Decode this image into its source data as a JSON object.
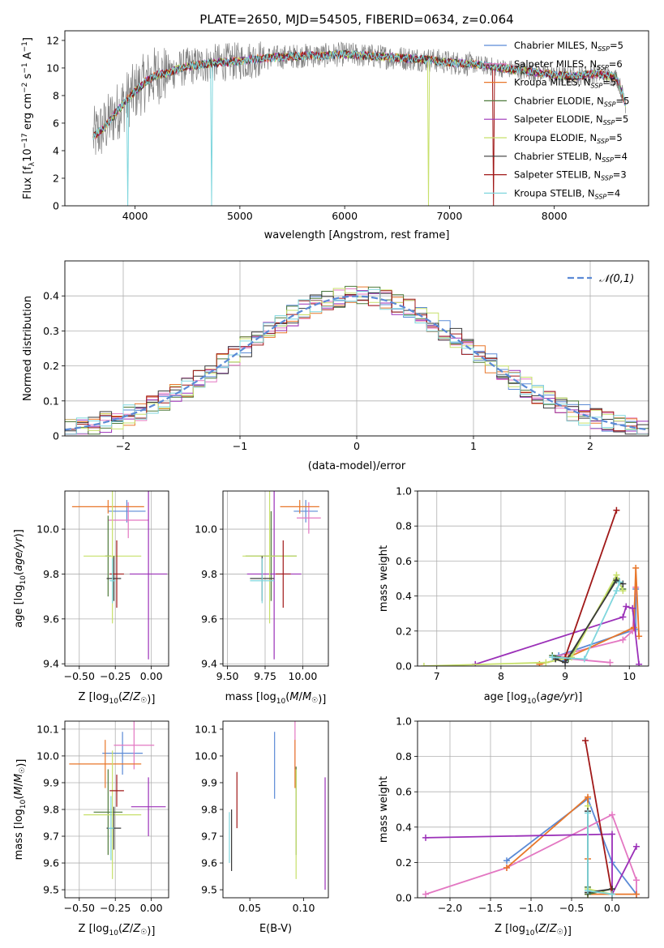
{
  "figure_title": "PLATE=2650, MJD=54505, FIBERID=0634, z=0.064",
  "colors": {
    "chabrier_miles": "#5b8ad6",
    "salpeter_miles": "#e377c2",
    "kroupa_miles": "#e8772a",
    "chabrier_elodie": "#4e7a3a",
    "salpeter_elodie": "#9b30b8",
    "kroupa_elodie": "#c7e06a",
    "chabrier_stelib": "#3a3a3a",
    "salpeter_stelib": "#a01818",
    "kroupa_stelib": "#7fd6dd",
    "data": "#808080",
    "normal": "#5b8ad6"
  },
  "chart_data": [
    {
      "id": "spectrum",
      "type": "line",
      "xlabel": "wavelength [Angstrom, rest frame]",
      "ylabel": "Flux [f_λ 10^-17 erg cm^-2 s^-1 A^-1]",
      "xlim": [
        3330,
        8900
      ],
      "ylim": [
        0,
        12.7
      ],
      "xticks": [
        4000,
        5000,
        6000,
        7000,
        8000
      ],
      "yticks": [
        0,
        2,
        4,
        6,
        8,
        10,
        12
      ],
      "legend_position": "upper right",
      "legend": [
        {
          "label": "Chabrier MILES, N",
          "sub": "SSP",
          "suffix": "=5",
          "key": "chabrier_miles"
        },
        {
          "label": "Salpeter MILES, N",
          "sub": "SSP",
          "suffix": "=6",
          "key": "salpeter_miles"
        },
        {
          "label": "Kroupa MILES, N",
          "sub": "SSP",
          "suffix": "=5",
          "key": "kroupa_miles"
        },
        {
          "label": "Chabrier ELODIE, N",
          "sub": "SSP",
          "suffix": "=5",
          "key": "chabrier_elodie"
        },
        {
          "label": "Salpeter ELODIE, N",
          "sub": "SSP",
          "suffix": "=5",
          "key": "salpeter_elodie"
        },
        {
          "label": "Kroupa ELODIE, N",
          "sub": "SSP",
          "suffix": "=5",
          "key": "kroupa_elodie"
        },
        {
          "label": "Chabrier STELIB, N",
          "sub": "SSP",
          "suffix": "=4",
          "key": "chabrier_stelib"
        },
        {
          "label": "Salpeter STELIB, N",
          "sub": "SSP",
          "suffix": "=3",
          "key": "salpeter_stelib"
        },
        {
          "label": "Kroupa STELIB, N",
          "sub": "SSP",
          "suffix": "=4",
          "key": "kroupa_stelib"
        }
      ],
      "continuum": [
        [
          3600,
          5.0
        ],
        [
          3700,
          5.6
        ],
        [
          3800,
          6.6
        ],
        [
          3900,
          7.5
        ],
        [
          4000,
          8.3
        ],
        [
          4100,
          9.0
        ],
        [
          4200,
          9.5
        ],
        [
          4300,
          9.6
        ],
        [
          4400,
          9.9
        ],
        [
          4500,
          10.1
        ],
        [
          4600,
          10.2
        ],
        [
          4700,
          10.3
        ],
        [
          4800,
          10.4
        ],
        [
          5000,
          10.5
        ],
        [
          5200,
          10.7
        ],
        [
          5400,
          10.8
        ],
        [
          5600,
          10.9
        ],
        [
          5800,
          10.9
        ],
        [
          6000,
          11.0
        ],
        [
          6200,
          10.9
        ],
        [
          6400,
          10.8
        ],
        [
          6600,
          10.7
        ],
        [
          6800,
          10.6
        ],
        [
          7000,
          10.4
        ],
        [
          7200,
          10.3
        ],
        [
          7400,
          10.1
        ],
        [
          7600,
          9.9
        ],
        [
          7800,
          9.7
        ],
        [
          8000,
          9.5
        ],
        [
          8200,
          9.4
        ],
        [
          8400,
          9.6
        ],
        [
          8600,
          9.3
        ],
        [
          8680,
          7.4
        ]
      ],
      "dips": [
        {
          "series": "kroupa_stelib",
          "x": 3930,
          "y": 0
        },
        {
          "series": "kroupa_stelib",
          "x": 4730,
          "y": 0
        },
        {
          "series": "kroupa_elodie",
          "x": 6800,
          "y": 0
        },
        {
          "series": "salpeter_stelib",
          "x": 7420,
          "y": 0
        }
      ]
    },
    {
      "id": "residuals",
      "type": "area",
      "xlabel": "(data-model)/error",
      "ylabel": "Normed distribution",
      "xlim": [
        -2.5,
        2.5
      ],
      "ylim": [
        0,
        0.5
      ],
      "xticks": [
        -2,
        -1,
        0,
        1,
        2
      ],
      "yticks": [
        0.0,
        0.1,
        0.2,
        0.3,
        0.4
      ],
      "grid": true,
      "legend_position": "upper right",
      "legend_label": "𝒩(0,1)",
      "bin_width": 0.1
    },
    {
      "id": "age_vs_Z",
      "type": "scatter",
      "xlabel": "Z [log10(Z/Z☉)]",
      "ylabel": "age  [log10(age/yr)]",
      "xlim": [
        -0.6,
        0.12
      ],
      "ylim": [
        9.39,
        10.17
      ],
      "xticks": [
        -0.5,
        -0.25,
        0.0
      ],
      "yticks": [
        9.4,
        9.6,
        9.8,
        10.0
      ],
      "grid": true,
      "crosses": [
        {
          "series": "chabrier_miles",
          "x": -0.17,
          "y": 10.08,
          "xerr": 0.13,
          "yerr": 0.05
        },
        {
          "series": "salpeter_miles",
          "x": -0.16,
          "y": 10.04,
          "xerr": 0.14,
          "yerr": 0.08
        },
        {
          "series": "kroupa_miles",
          "x": -0.3,
          "y": 10.1,
          "xerr": 0.25,
          "yerr": 0.03
        },
        {
          "series": "chabrier_elodie",
          "x": -0.3,
          "y": 9.88,
          "xerr": 0.02,
          "yerr": 0.18
        },
        {
          "series": "salpeter_elodie",
          "x": -0.02,
          "y": 9.8,
          "xerr": 0.13,
          "yerr": 0.38
        },
        {
          "series": "kroupa_elodie",
          "x": -0.27,
          "y": 9.88,
          "xerr": 0.2,
          "yerr": 0.3
        },
        {
          "series": "chabrier_stelib",
          "x": -0.26,
          "y": 9.78,
          "xerr": 0.05,
          "yerr": 0.1
        },
        {
          "series": "salpeter_stelib",
          "x": -0.24,
          "y": 9.8,
          "xerr": 0.05,
          "yerr": 0.15
        },
        {
          "series": "kroupa_stelib",
          "x": -0.27,
          "y": 9.77,
          "xerr": 0.02,
          "yerr": 0.1
        }
      ]
    },
    {
      "id": "age_vs_mass",
      "type": "scatter",
      "xlabel": "mass [log10(M/M☉)]",
      "ylabel": "",
      "xlim": [
        9.47,
        10.17
      ],
      "ylim": [
        9.39,
        10.17
      ],
      "xticks": [
        9.5,
        9.75,
        10.0
      ],
      "yticks": [
        9.4,
        9.6,
        9.8,
        10.0
      ],
      "grid": true,
      "crosses": [
        {
          "series": "chabrier_miles",
          "x": 10.02,
          "y": 10.08,
          "xerr": 0.08,
          "yerr": 0.05
        },
        {
          "series": "salpeter_miles",
          "x": 10.04,
          "y": 10.05,
          "xerr": 0.08,
          "yerr": 0.07
        },
        {
          "series": "kroupa_miles",
          "x": 9.98,
          "y": 10.1,
          "xerr": 0.13,
          "yerr": 0.03
        },
        {
          "series": "chabrier_elodie",
          "x": 9.79,
          "y": 9.88,
          "xerr": 0.17,
          "yerr": 0.2
        },
        {
          "series": "salpeter_elodie",
          "x": 9.81,
          "y": 9.8,
          "xerr": 0.18,
          "yerr": 0.38
        },
        {
          "series": "kroupa_elodie",
          "x": 9.78,
          "y": 9.88,
          "xerr": 0.18,
          "yerr": 0.3
        },
        {
          "series": "chabrier_stelib",
          "x": 9.73,
          "y": 9.78,
          "xerr": 0.08,
          "yerr": 0.1
        },
        {
          "series": "salpeter_stelib",
          "x": 9.87,
          "y": 9.8,
          "xerr": 0.05,
          "yerr": 0.15
        },
        {
          "series": "kroupa_stelib",
          "x": 9.73,
          "y": 9.77,
          "xerr": 0.08,
          "yerr": 0.1
        }
      ]
    },
    {
      "id": "weight_vs_age",
      "type": "line",
      "xlabel": "age  [log10(age/yr)]",
      "ylabel": "mass weight",
      "xlim": [
        6.7,
        10.3
      ],
      "ylim": [
        0,
        1.0
      ],
      "xticks": [
        7,
        8,
        9,
        10
      ],
      "yticks": [
        0.0,
        0.2,
        0.4,
        0.6,
        0.8,
        1.0
      ],
      "grid": true,
      "series": [
        {
          "key": "chabrier_miles",
          "points": [
            [
              9.0,
              0.03
            ],
            [
              8.9,
              0.06
            ],
            [
              10.1,
              0.21
            ],
            [
              10.1,
              0.44
            ]
          ]
        },
        {
          "key": "salpeter_miles",
          "points": [
            [
              9.7,
              0.02
            ],
            [
              8.8,
              0.05
            ],
            [
              9.9,
              0.15
            ],
            [
              10.05,
              0.2
            ],
            [
              10.1,
              0.45
            ]
          ]
        },
        {
          "key": "kroupa_miles",
          "points": [
            [
              8.6,
              0.01
            ],
            [
              9.05,
              0.05
            ],
            [
              10.07,
              0.22
            ],
            [
              10.1,
              0.56
            ],
            [
              10.15,
              0.17
            ]
          ]
        },
        {
          "key": "chabrier_elodie",
          "points": [
            [
              8.8,
              0.06
            ],
            [
              9.05,
              0.04
            ],
            [
              9.8,
              0.5
            ],
            [
              9.9,
              0.44
            ]
          ]
        },
        {
          "key": "salpeter_elodie",
          "points": [
            [
              7.6,
              0.01
            ],
            [
              9.9,
              0.28
            ],
            [
              9.95,
              0.34
            ],
            [
              10.05,
              0.33
            ],
            [
              10.15,
              0.01
            ]
          ]
        },
        {
          "key": "kroupa_elodie",
          "points": [
            [
              6.8,
              0.0
            ],
            [
              8.7,
              0.02
            ],
            [
              9.1,
              0.05
            ],
            [
              9.8,
              0.52
            ],
            [
              9.9,
              0.43
            ]
          ]
        },
        {
          "key": "chabrier_stelib",
          "points": [
            [
              8.85,
              0.04
            ],
            [
              9.0,
              0.02
            ],
            [
              9.8,
              0.49
            ],
            [
              9.9,
              0.47
            ]
          ]
        },
        {
          "key": "salpeter_stelib",
          "points": [
            [
              9.0,
              0.05
            ],
            [
              9.8,
              0.89
            ]
          ]
        },
        {
          "key": "kroupa_stelib",
          "points": [
            [
              8.8,
              0.05
            ],
            [
              9.3,
              0.04
            ],
            [
              9.8,
              0.43
            ],
            [
              9.85,
              0.48
            ]
          ]
        }
      ]
    },
    {
      "id": "mass_vs_Z",
      "type": "scatter",
      "xlabel": "Z [log10(Z/Z☉)]",
      "ylabel": "mass [log10(M/M☉)]",
      "xlim": [
        -0.6,
        0.12
      ],
      "ylim": [
        9.47,
        10.13
      ],
      "xticks": [
        -0.5,
        -0.25,
        0.0
      ],
      "yticks": [
        9.5,
        9.6,
        9.7,
        9.8,
        9.9,
        10.0,
        10.1
      ],
      "grid": true,
      "crosses": [
        {
          "series": "chabrier_miles",
          "x": -0.2,
          "y": 10.01,
          "xerr": 0.14,
          "yerr": 0.08
        },
        {
          "series": "salpeter_miles",
          "x": -0.12,
          "y": 10.04,
          "xerr": 0.14,
          "yerr": 0.09
        },
        {
          "series": "kroupa_miles",
          "x": -0.32,
          "y": 9.97,
          "xerr": 0.25,
          "yerr": 0.09
        },
        {
          "series": "chabrier_elodie",
          "x": -0.3,
          "y": 9.79,
          "xerr": 0.1,
          "yerr": 0.16
        },
        {
          "series": "salpeter_elodie",
          "x": -0.02,
          "y": 9.81,
          "xerr": 0.12,
          "yerr": 0.11
        },
        {
          "series": "kroupa_elodie",
          "x": -0.27,
          "y": 9.78,
          "xerr": 0.2,
          "yerr": 0.24
        },
        {
          "series": "chabrier_stelib",
          "x": -0.26,
          "y": 9.73,
          "xerr": 0.05,
          "yerr": 0.08
        },
        {
          "series": "salpeter_stelib",
          "x": -0.24,
          "y": 9.87,
          "xerr": 0.05,
          "yerr": 0.06
        },
        {
          "series": "kroupa_stelib",
          "x": -0.28,
          "y": 9.73,
          "xerr": 0.02,
          "yerr": 0.12
        }
      ]
    },
    {
      "id": "mass_vs_ebv",
      "type": "scatter",
      "xlabel": "E(B-V)",
      "ylabel": "",
      "xlim": [
        0.025,
        0.123
      ],
      "ylim": [
        9.47,
        10.13
      ],
      "xticks": [
        0.05,
        0.1
      ],
      "yticks": [
        9.5,
        9.6,
        9.7,
        9.8,
        9.9,
        10.0,
        10.1
      ],
      "grid": false,
      "bars": [
        {
          "series": "chabrier_miles",
          "x": 0.073,
          "y0": 9.84,
          "y1": 10.09
        },
        {
          "series": "salpeter_miles",
          "x": 0.092,
          "y0": 9.95,
          "y1": 10.13
        },
        {
          "series": "kroupa_miles",
          "x": 0.092,
          "y0": 9.88,
          "y1": 10.06
        },
        {
          "series": "chabrier_elodie",
          "x": 0.093,
          "y0": 9.63,
          "y1": 9.96
        },
        {
          "series": "salpeter_elodie",
          "x": 0.12,
          "y0": 9.5,
          "y1": 9.92
        },
        {
          "series": "kroupa_elodie",
          "x": 0.093,
          "y0": 9.54,
          "y1": 9.95
        },
        {
          "series": "chabrier_stelib",
          "x": 0.033,
          "y0": 9.57,
          "y1": 9.8
        },
        {
          "series": "salpeter_stelib",
          "x": 0.038,
          "y0": 9.73,
          "y1": 9.94
        },
        {
          "series": "kroupa_stelib",
          "x": 0.031,
          "y0": 9.6,
          "y1": 9.79
        }
      ]
    },
    {
      "id": "weight_vs_Z",
      "type": "line",
      "xlabel": "Z [log10(Z/Z☉)]",
      "ylabel": "mass weight",
      "xlim": [
        -2.4,
        0.45
      ],
      "ylim": [
        0,
        1.0
      ],
      "xticks": [
        -2.0,
        -1.5,
        -1.0,
        -0.5,
        0.0
      ],
      "yticks": [
        0.0,
        0.2,
        0.4,
        0.6,
        0.8,
        1.0
      ],
      "grid": true,
      "series": [
        {
          "key": "chabrier_miles",
          "points": [
            [
              -1.3,
              0.21
            ],
            [
              -0.3,
              0.56
            ],
            [
              0.0,
              0.2
            ],
            [
              0.3,
              0.02
            ]
          ]
        },
        {
          "key": "salpeter_miles",
          "points": [
            [
              -2.3,
              0.02
            ],
            [
              -1.3,
              0.17
            ],
            [
              0.0,
              0.47
            ],
            [
              0.3,
              0.1
            ],
            [
              0.3,
              0.02
            ]
          ]
        },
        {
          "key": "kroupa_miles",
          "points": [
            [
              -1.3,
              0.17
            ],
            [
              -0.3,
              0.57
            ],
            [
              -0.3,
              0.22
            ],
            [
              -0.3,
              0.02
            ],
            [
              0.3,
              0.02
            ]
          ]
        },
        {
          "key": "chabrier_elodie",
          "points": [
            [
              -0.3,
              0.06
            ],
            [
              -0.3,
              0.02
            ],
            [
              0.0,
              0.05
            ]
          ]
        },
        {
          "key": "salpeter_elodie",
          "points": [
            [
              -2.3,
              0.34
            ],
            [
              0.0,
              0.36
            ],
            [
              0.0,
              0.02
            ],
            [
              0.3,
              0.29
            ]
          ]
        },
        {
          "key": "kroupa_elodie",
          "points": [
            [
              -0.3,
              0.52
            ],
            [
              -0.3,
              0.05
            ],
            [
              0.0,
              0.02
            ]
          ]
        },
        {
          "key": "chabrier_stelib",
          "points": [
            [
              -0.3,
              0.49
            ],
            [
              -0.3,
              0.03
            ],
            [
              0.0,
              0.05
            ]
          ]
        },
        {
          "key": "salpeter_stelib",
          "points": [
            [
              -0.33,
              0.89
            ],
            [
              0.0,
              0.02
            ]
          ]
        },
        {
          "key": "kroupa_stelib",
          "points": [
            [
              -0.3,
              0.48
            ],
            [
              -0.3,
              0.04
            ],
            [
              0.0,
              0.02
            ]
          ]
        }
      ]
    }
  ]
}
